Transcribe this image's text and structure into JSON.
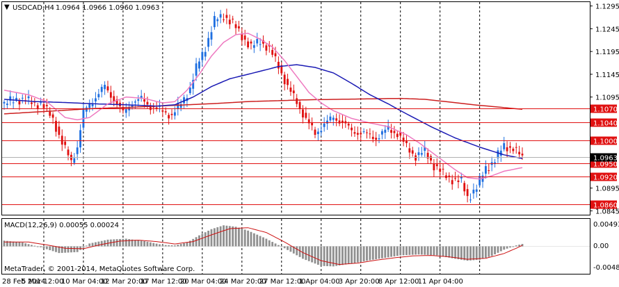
{
  "header": {
    "menu_glyph": "▼",
    "symbol": "USDCAD,H4",
    "ohlc": "1.0964 1.0966 1.0960 1.0963"
  },
  "indicator": {
    "label": "MACD(12,26,9) 0.00055 0.00024",
    "scale": [
      "0.00493",
      "0.00",
      "-0.00482"
    ]
  },
  "footer": {
    "copyright": "MetaTrader, © 2001-2014, MetaQuotes Software Corp."
  },
  "price_axis": [
    "1.1295",
    "1.1245",
    "1.1195",
    "1.1145",
    "1.1095",
    "1.0895",
    "1.0845"
  ],
  "time_axis": [
    "28 Feb 2014",
    "5 Mar 12:00",
    "10 Mar 04:00",
    "12 Mar 20:00",
    "17 Mar 12:00",
    "20 Mar 04:00",
    "24 Mar 20:00",
    "27 Mar 12:00",
    "1 Apr 04:00",
    "3 Apr 20:00",
    "8 Apr 12:00",
    "11 Apr 04:00"
  ],
  "levels": [
    {
      "label": "1.1070",
      "value": 1.107
    },
    {
      "label": "1.1040",
      "value": 1.104
    },
    {
      "label": "1.1000",
      "value": 1.1
    },
    {
      "label": "1.0950",
      "value": 1.095
    },
    {
      "label": "1.0920",
      "value": 1.092
    },
    {
      "label": "1.0860",
      "value": 1.086
    }
  ],
  "current_price": {
    "label": "1.0963",
    "value": 1.0963
  },
  "colors": {
    "bull": "#1f6fe0",
    "bear": "#e01010",
    "ma_fast": "#ee79c0",
    "ma_mid": "#1a1ab4",
    "ma_slow": "#cc1e1e",
    "level": "#e01010",
    "histogram": "#909090",
    "signal": "#cc1010",
    "grid": "#000000"
  },
  "chart_data": {
    "type": "candlestick",
    "symbol": "USDCAD",
    "timeframe": "H4",
    "ylim": [
      1.0838,
      1.1302
    ],
    "price_path": [
      [
        0,
        1.1078
      ],
      [
        4,
        1.1092
      ],
      [
        8,
        1.1085
      ],
      [
        12,
        1.108
      ],
      [
        16,
        1.1048
      ],
      [
        19,
        1.0992
      ],
      [
        22,
        1.0955
      ],
      [
        24,
        1.0985
      ],
      [
        26,
        1.1062
      ],
      [
        30,
        1.1095
      ],
      [
        33,
        1.1118
      ],
      [
        36,
        1.109
      ],
      [
        39,
        1.106
      ],
      [
        42,
        1.1083
      ],
      [
        45,
        1.109
      ],
      [
        48,
        1.1075
      ],
      [
        51,
        1.1066
      ],
      [
        55,
        1.1055
      ],
      [
        58,
        1.108
      ],
      [
        61,
        1.1115
      ],
      [
        63,
        1.1158
      ],
      [
        66,
        1.1205
      ],
      [
        69,
        1.1262
      ],
      [
        72,
        1.1275
      ],
      [
        75,
        1.1255
      ],
      [
        78,
        1.123
      ],
      [
        81,
        1.1203
      ],
      [
        84,
        1.122
      ],
      [
        87,
        1.1198
      ],
      [
        90,
        1.1165
      ],
      [
        93,
        1.1115
      ],
      [
        96,
        1.1085
      ],
      [
        99,
        1.1045
      ],
      [
        102,
        1.1015
      ],
      [
        105,
        1.1035
      ],
      [
        108,
        1.105
      ],
      [
        111,
        1.104
      ],
      [
        114,
        1.102
      ],
      [
        118,
        1.1015
      ],
      [
        122,
        1.1005
      ],
      [
        126,
        1.1025
      ],
      [
        129,
        1.1015
      ],
      [
        132,
        1.0985
      ],
      [
        135,
        1.0965
      ],
      [
        138,
        1.0975
      ],
      [
        141,
        1.0945
      ],
      [
        144,
        1.0925
      ],
      [
        147,
        1.0915
      ],
      [
        150,
        1.0908
      ],
      [
        152,
        1.0875
      ],
      [
        155,
        1.0895
      ],
      [
        158,
        1.094
      ],
      [
        161,
        1.0955
      ],
      [
        164,
        1.099
      ],
      [
        167,
        1.098
      ],
      [
        170,
        1.0963
      ]
    ],
    "ma_fast_path": [
      [
        0,
        1.111
      ],
      [
        8,
        1.11
      ],
      [
        14,
        1.1085
      ],
      [
        20,
        1.105
      ],
      [
        24,
        1.1045
      ],
      [
        28,
        1.105
      ],
      [
        34,
        1.108
      ],
      [
        40,
        1.1095
      ],
      [
        46,
        1.1092
      ],
      [
        52,
        1.1082
      ],
      [
        56,
        1.1085
      ],
      [
        60,
        1.111
      ],
      [
        64,
        1.1145
      ],
      [
        68,
        1.1185
      ],
      [
        72,
        1.1215
      ],
      [
        76,
        1.1232
      ],
      [
        80,
        1.1235
      ],
      [
        84,
        1.1222
      ],
      [
        88,
        1.1205
      ],
      [
        92,
        1.1175
      ],
      [
        96,
        1.114
      ],
      [
        100,
        1.1105
      ],
      [
        104,
        1.1082
      ],
      [
        108,
        1.1065
      ],
      [
        114,
        1.1048
      ],
      [
        120,
        1.1038
      ],
      [
        126,
        1.103
      ],
      [
        132,
        1.1012
      ],
      [
        136,
        1.0995
      ],
      [
        140,
        1.0975
      ],
      [
        144,
        1.0955
      ],
      [
        148,
        1.0935
      ],
      [
        152,
        1.0918
      ],
      [
        156,
        1.0915
      ],
      [
        160,
        1.0922
      ],
      [
        164,
        1.0932
      ],
      [
        170,
        1.094
      ]
    ],
    "ma_mid_path": [
      [
        0,
        1.109
      ],
      [
        10,
        1.1085
      ],
      [
        20,
        1.1083
      ],
      [
        30,
        1.108
      ],
      [
        40,
        1.1078
      ],
      [
        50,
        1.1075
      ],
      [
        56,
        1.1078
      ],
      [
        62,
        1.1095
      ],
      [
        68,
        1.1118
      ],
      [
        74,
        1.1135
      ],
      [
        80,
        1.1145
      ],
      [
        86,
        1.1155
      ],
      [
        90,
        1.1162
      ],
      [
        96,
        1.1166
      ],
      [
        102,
        1.116
      ],
      [
        108,
        1.1148
      ],
      [
        114,
        1.1125
      ],
      [
        120,
        1.11
      ],
      [
        126,
        1.108
      ],
      [
        132,
        1.1058
      ],
      [
        140,
        1.103
      ],
      [
        148,
        1.1005
      ],
      [
        156,
        1.0985
      ],
      [
        164,
        1.0968
      ],
      [
        170,
        1.096
      ]
    ],
    "ma_slow_path": [
      [
        0,
        1.1058
      ],
      [
        10,
        1.1062
      ],
      [
        20,
        1.1066
      ],
      [
        30,
        1.107
      ],
      [
        40,
        1.1072
      ],
      [
        50,
        1.1075
      ],
      [
        60,
        1.1078
      ],
      [
        70,
        1.1081
      ],
      [
        80,
        1.1085
      ],
      [
        90,
        1.1087
      ],
      [
        100,
        1.1089
      ],
      [
        110,
        1.109
      ],
      [
        120,
        1.1091
      ],
      [
        130,
        1.1092
      ],
      [
        138,
        1.109
      ],
      [
        146,
        1.1084
      ],
      [
        154,
        1.1078
      ],
      [
        162,
        1.1073
      ],
      [
        170,
        1.1068
      ]
    ],
    "macd": {
      "ylim": [
        -0.0056,
        0.0056
      ],
      "histogram_path": [
        [
          0,
          0.0012
        ],
        [
          6,
          0.0008
        ],
        [
          12,
          -0.0002
        ],
        [
          18,
          -0.0014
        ],
        [
          24,
          -0.0012
        ],
        [
          28,
          0.0006
        ],
        [
          34,
          0.0014
        ],
        [
          40,
          0.0016
        ],
        [
          46,
          0.0011
        ],
        [
          52,
          0.0003
        ],
        [
          56,
          0.0002
        ],
        [
          60,
          0.0008
        ],
        [
          64,
          0.0023
        ],
        [
          68,
          0.0036
        ],
        [
          72,
          0.0044
        ],
        [
          76,
          0.0041
        ],
        [
          80,
          0.0033
        ],
        [
          86,
          0.0016
        ],
        [
          92,
          -0.0004
        ],
        [
          98,
          -0.0026
        ],
        [
          104,
          -0.0041
        ],
        [
          108,
          -0.0042
        ],
        [
          114,
          -0.0036
        ],
        [
          120,
          -0.0029
        ],
        [
          126,
          -0.0023
        ],
        [
          130,
          -0.0019
        ],
        [
          136,
          -0.0017
        ],
        [
          142,
          -0.0019
        ],
        [
          148,
          -0.0026
        ],
        [
          152,
          -0.003
        ],
        [
          156,
          -0.0028
        ],
        [
          160,
          -0.002
        ],
        [
          164,
          -0.0007
        ],
        [
          168,
          0.0002
        ],
        [
          170,
          0.0005
        ]
      ],
      "signal_path": [
        [
          0,
          0.0009
        ],
        [
          8,
          0.0009
        ],
        [
          14,
          0.0003
        ],
        [
          20,
          -0.0004
        ],
        [
          26,
          -0.0005
        ],
        [
          32,
          0.0004
        ],
        [
          38,
          0.0011
        ],
        [
          44,
          0.0013
        ],
        [
          50,
          0.001
        ],
        [
          56,
          0.0005
        ],
        [
          62,
          0.001
        ],
        [
          68,
          0.0024
        ],
        [
          74,
          0.0037
        ],
        [
          80,
          0.0039
        ],
        [
          86,
          0.0029
        ],
        [
          92,
          0.0009
        ],
        [
          98,
          -0.0013
        ],
        [
          104,
          -0.003
        ],
        [
          110,
          -0.0038
        ],
        [
          116,
          -0.0035
        ],
        [
          122,
          -0.0029
        ],
        [
          128,
          -0.0024
        ],
        [
          134,
          -0.002
        ],
        [
          140,
          -0.0019
        ],
        [
          146,
          -0.0022
        ],
        [
          152,
          -0.0027
        ],
        [
          158,
          -0.0025
        ],
        [
          164,
          -0.0015
        ],
        [
          168,
          -0.0004
        ],
        [
          170,
          0.0002
        ]
      ]
    }
  }
}
